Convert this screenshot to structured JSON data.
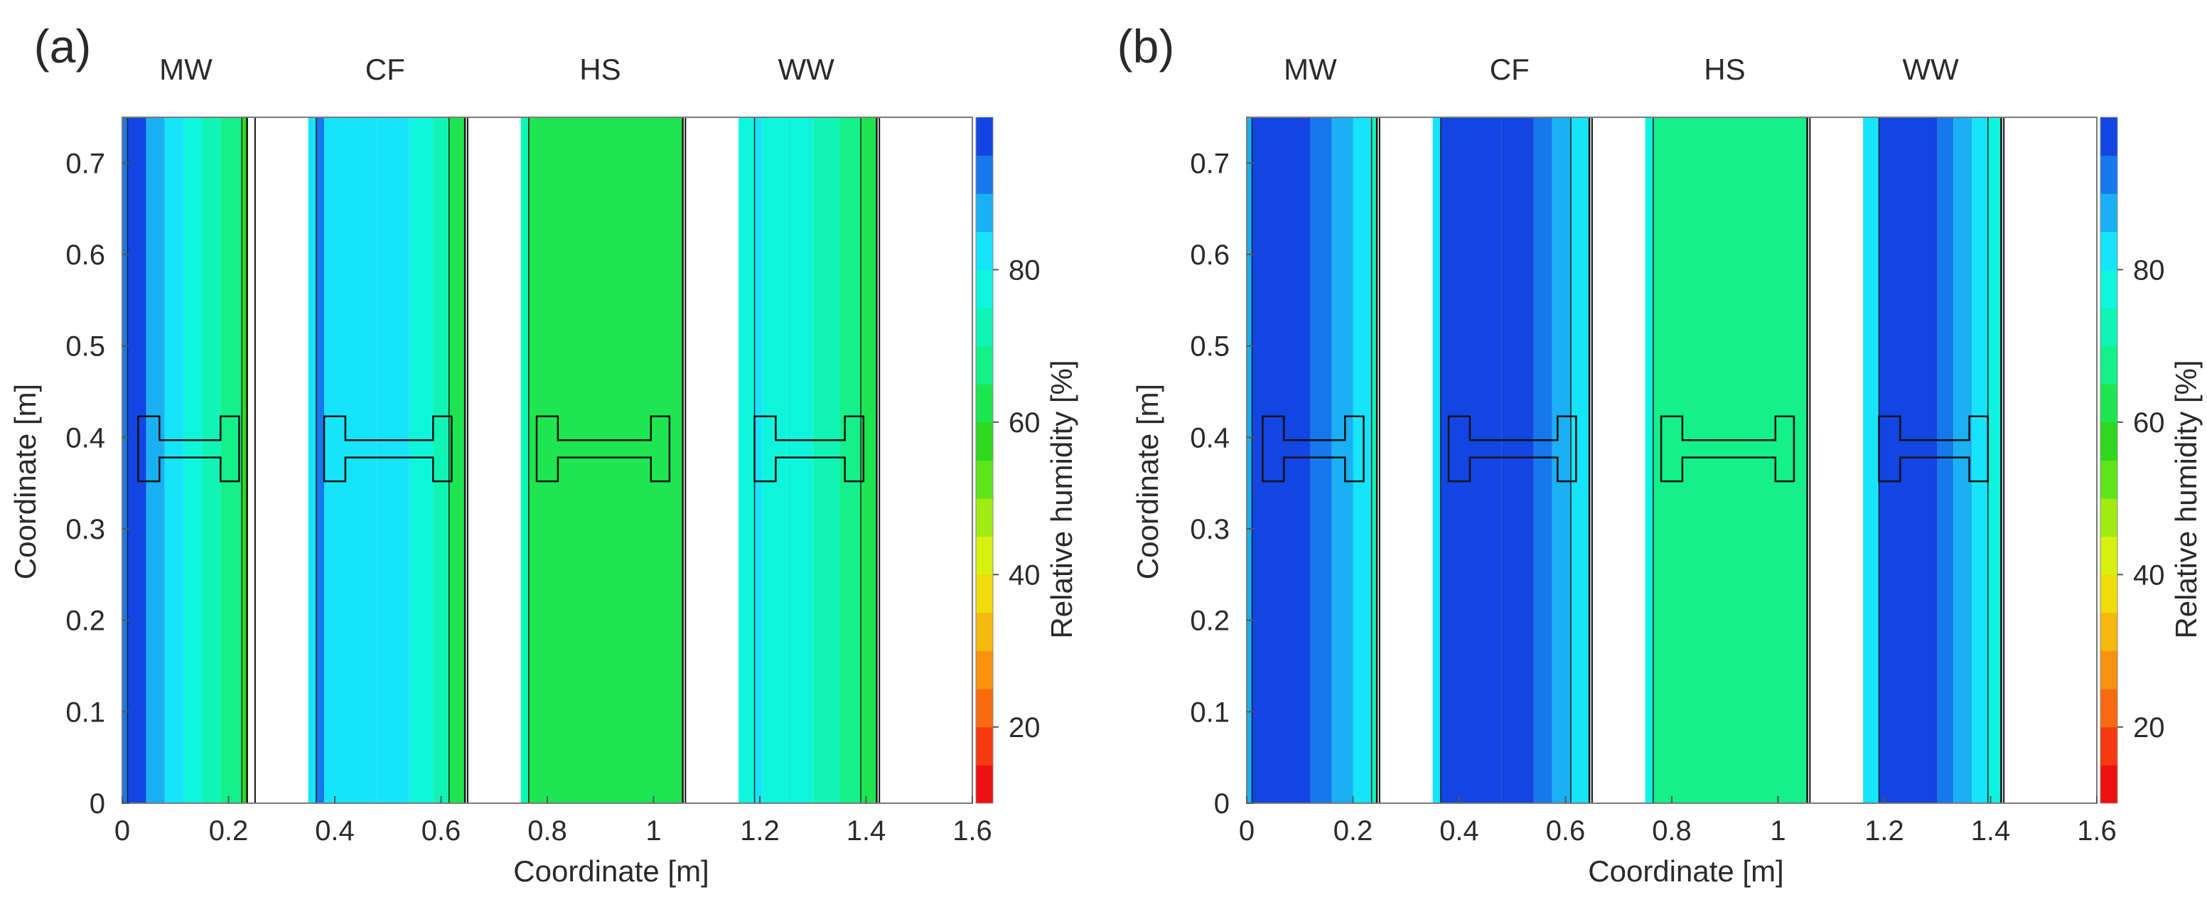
{
  "figure": {
    "description_free": true
  },
  "colorbar": {
    "levels": [
      {
        "lo": 10,
        "hi": 15,
        "color": "#ee1111"
      },
      {
        "lo": 15,
        "hi": 20,
        "color": "#f53a10"
      },
      {
        "lo": 20,
        "hi": 25,
        "color": "#f76a10"
      },
      {
        "lo": 25,
        "hi": 30,
        "color": "#f8920f"
      },
      {
        "lo": 30,
        "hi": 35,
        "color": "#f5b80d"
      },
      {
        "lo": 35,
        "hi": 40,
        "color": "#f0dc0a"
      },
      {
        "lo": 40,
        "hi": 45,
        "color": "#d8f010"
      },
      {
        "lo": 45,
        "hi": 50,
        "color": "#a0ec12"
      },
      {
        "lo": 50,
        "hi": 55,
        "color": "#5fe41a"
      },
      {
        "lo": 55,
        "hi": 60,
        "color": "#2fd81e"
      },
      {
        "lo": 60,
        "hi": 65,
        "color": "#1ee650"
      },
      {
        "lo": 65,
        "hi": 70,
        "color": "#14f08a"
      },
      {
        "lo": 70,
        "hi": 75,
        "color": "#10f5b6"
      },
      {
        "lo": 75,
        "hi": 80,
        "color": "#0ff5dd"
      },
      {
        "lo": 80,
        "hi": 85,
        "color": "#16e4fa"
      },
      {
        "lo": 85,
        "hi": 90,
        "color": "#1ab0f4"
      },
      {
        "lo": 90,
        "hi": 95,
        "color": "#1678ec"
      },
      {
        "lo": 95,
        "hi": 100,
        "color": "#1245e2"
      }
    ],
    "range": [
      10,
      100
    ],
    "ticks": [
      20,
      40,
      60,
      80
    ],
    "label": "Relative humidity [%]"
  },
  "chart_data": [
    {
      "type": "heatmap",
      "panel_label": "(a)",
      "xlabel": "Coordinate [m]",
      "ylabel": "Coordinate [m]",
      "xlim": [
        0,
        1.6
      ],
      "ylim": [
        0,
        0.75
      ],
      "xticks": [
        0,
        0.2,
        0.4,
        0.6,
        0.8,
        1,
        1.2,
        1.4,
        1.6
      ],
      "xtick_labels": [
        "0",
        "0.2",
        "0.4",
        "0.6",
        "0.8",
        "1",
        "1.2",
        "1.4",
        "1.6"
      ],
      "yticks": [
        0,
        0.1,
        0.2,
        0.3,
        0.4,
        0.5,
        0.6,
        0.7
      ],
      "ytick_labels": [
        "0",
        "0.1",
        "0.2",
        "0.3",
        "0.4",
        "0.5",
        "0.6",
        "0.7"
      ],
      "walls": [
        {
          "name": "MW",
          "x0": 0.0,
          "x1": 0.25,
          "bands": [
            {
              "x0": 0.0,
              "x1": 0.01,
              "rh": 92
            },
            {
              "x0": 0.01,
              "x1": 0.045,
              "rh": 97
            },
            {
              "x0": 0.045,
              "x1": 0.08,
              "rh": 86
            },
            {
              "x0": 0.08,
              "x1": 0.115,
              "rh": 82
            },
            {
              "x0": 0.115,
              "x1": 0.15,
              "rh": 77
            },
            {
              "x0": 0.15,
              "x1": 0.185,
              "rh": 73
            },
            {
              "x0": 0.185,
              "x1": 0.225,
              "rh": 67
            },
            {
              "x0": 0.225,
              "x1": 0.235,
              "rh": 58
            }
          ]
        },
        {
          "name": "CF",
          "x0": 0.35,
          "x1": 0.65,
          "bands": [
            {
              "x0": 0.35,
              "x1": 0.365,
              "rh": 80
            },
            {
              "x0": 0.365,
              "x1": 0.38,
              "rh": 92
            },
            {
              "x0": 0.38,
              "x1": 0.48,
              "rh": 84
            },
            {
              "x0": 0.48,
              "x1": 0.54,
              "rh": 82
            },
            {
              "x0": 0.54,
              "x1": 0.585,
              "rh": 78
            },
            {
              "x0": 0.585,
              "x1": 0.615,
              "rh": 73
            },
            {
              "x0": 0.615,
              "x1": 0.645,
              "rh": 62
            }
          ]
        },
        {
          "name": "HS",
          "x0": 0.75,
          "x1": 1.06,
          "bands": [
            {
              "x0": 0.75,
              "x1": 0.765,
              "rh": 72
            },
            {
              "x0": 0.765,
              "x1": 1.055,
              "rh": 60
            }
          ]
        },
        {
          "name": "WW",
          "x0": 1.16,
          "x1": 1.425,
          "bands": [
            {
              "x0": 1.16,
              "x1": 1.19,
              "rh": 78
            },
            {
              "x0": 1.19,
              "x1": 1.205,
              "rh": 84
            },
            {
              "x0": 1.205,
              "x1": 1.25,
              "rh": 79
            },
            {
              "x0": 1.25,
              "x1": 1.3,
              "rh": 77
            },
            {
              "x0": 1.3,
              "x1": 1.35,
              "rh": 73
            },
            {
              "x0": 1.35,
              "x1": 1.39,
              "rh": 68
            },
            {
              "x0": 1.39,
              "x1": 1.42,
              "rh": 62
            }
          ]
        }
      ]
    },
    {
      "type": "heatmap",
      "panel_label": "(b)",
      "xlabel": "Coordinate [m]",
      "ylabel": "Coordinate [m]",
      "xlim": [
        0,
        1.6
      ],
      "ylim": [
        0,
        0.75
      ],
      "xticks": [
        0,
        0.2,
        0.4,
        0.6,
        0.8,
        1,
        1.2,
        1.4,
        1.6
      ],
      "xtick_labels": [
        "0",
        "0.2",
        "0.4",
        "0.6",
        "0.8",
        "1",
        "1.2",
        "1.4",
        "1.6"
      ],
      "yticks": [
        0,
        0.1,
        0.2,
        0.3,
        0.4,
        0.5,
        0.6,
        0.7
      ],
      "ytick_labels": [
        "0",
        "0.1",
        "0.2",
        "0.3",
        "0.4",
        "0.5",
        "0.6",
        "0.7"
      ],
      "walls": [
        {
          "name": "MW",
          "x0": 0.0,
          "x1": 0.25,
          "bands": [
            {
              "x0": 0.0,
              "x1": 0.01,
              "rh": 85
            },
            {
              "x0": 0.01,
              "x1": 0.12,
              "rh": 97
            },
            {
              "x0": 0.12,
              "x1": 0.16,
              "rh": 92
            },
            {
              "x0": 0.16,
              "x1": 0.2,
              "rh": 87
            },
            {
              "x0": 0.2,
              "x1": 0.235,
              "rh": 83
            },
            {
              "x0": 0.235,
              "x1": 0.245,
              "rh": 73
            }
          ]
        },
        {
          "name": "CF",
          "x0": 0.35,
          "x1": 0.65,
          "bands": [
            {
              "x0": 0.35,
              "x1": 0.365,
              "rh": 80
            },
            {
              "x0": 0.365,
              "x1": 0.48,
              "rh": 98
            },
            {
              "x0": 0.48,
              "x1": 0.54,
              "rh": 96
            },
            {
              "x0": 0.54,
              "x1": 0.575,
              "rh": 92
            },
            {
              "x0": 0.575,
              "x1": 0.61,
              "rh": 87
            },
            {
              "x0": 0.61,
              "x1": 0.645,
              "rh": 82
            }
          ]
        },
        {
          "name": "HS",
          "x0": 0.75,
          "x1": 1.06,
          "bands": [
            {
              "x0": 0.75,
              "x1": 0.765,
              "rh": 78
            },
            {
              "x0": 0.765,
              "x1": 1.055,
              "rh": 67
            }
          ]
        },
        {
          "name": "WW",
          "x0": 1.16,
          "x1": 1.425,
          "bands": [
            {
              "x0": 1.16,
              "x1": 1.19,
              "rh": 84
            },
            {
              "x0": 1.19,
              "x1": 1.3,
              "rh": 96
            },
            {
              "x0": 1.3,
              "x1": 1.33,
              "rh": 92
            },
            {
              "x0": 1.33,
              "x1": 1.365,
              "rh": 87
            },
            {
              "x0": 1.365,
              "x1": 1.395,
              "rh": 82
            },
            {
              "x0": 1.395,
              "x1": 1.42,
              "rh": 76
            }
          ]
        }
      ]
    }
  ]
}
